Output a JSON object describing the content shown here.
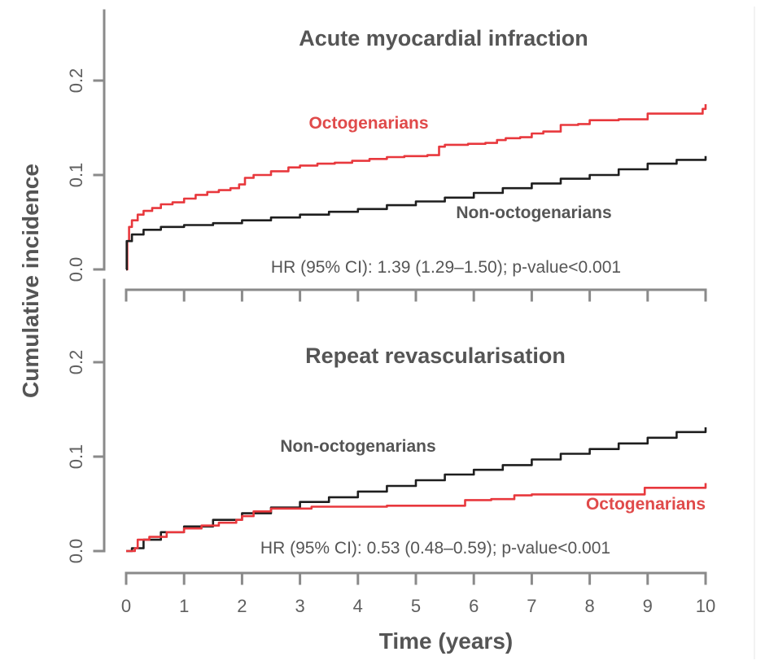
{
  "chart_data": [
    {
      "type": "line",
      "subtype": "step",
      "title": "Acute myocardial infraction",
      "xlabel": "Time (years)",
      "ylabel": "Cumulative incidence",
      "xlim": [
        0,
        10
      ],
      "ylim": [
        0,
        0.25
      ],
      "x_ticks": [
        "0",
        "1",
        "2",
        "3",
        "4",
        "5",
        "6",
        "7",
        "8",
        "9",
        "10"
      ],
      "y_ticks": [
        "0.0",
        "0.1",
        "0.2"
      ],
      "grid": false,
      "annotation": "HR (95% CI): 1.39 (1.29–1.50); p-value<0.001",
      "series": [
        {
          "name": "Octogenarians",
          "color": "#e8383d",
          "label_color": "#e04a4a",
          "points": [
            [
              0,
              0.0
            ],
            [
              0.02,
              0.03
            ],
            [
              0.05,
              0.045
            ],
            [
              0.1,
              0.052
            ],
            [
              0.2,
              0.058
            ],
            [
              0.3,
              0.062
            ],
            [
              0.45,
              0.065
            ],
            [
              0.6,
              0.069
            ],
            [
              0.8,
              0.071
            ],
            [
              1.0,
              0.075
            ],
            [
              1.2,
              0.079
            ],
            [
              1.4,
              0.082
            ],
            [
              1.6,
              0.084
            ],
            [
              1.8,
              0.086
            ],
            [
              1.95,
              0.09
            ],
            [
              2.05,
              0.097
            ],
            [
              2.2,
              0.1
            ],
            [
              2.5,
              0.104
            ],
            [
              2.8,
              0.108
            ],
            [
              3.0,
              0.11
            ],
            [
              3.3,
              0.112
            ],
            [
              3.6,
              0.113
            ],
            [
              3.9,
              0.115
            ],
            [
              4.2,
              0.117
            ],
            [
              4.5,
              0.119
            ],
            [
              4.8,
              0.12
            ],
            [
              5.2,
              0.121
            ],
            [
              5.4,
              0.13
            ],
            [
              5.5,
              0.132
            ],
            [
              5.9,
              0.133
            ],
            [
              6.2,
              0.134
            ],
            [
              6.4,
              0.137
            ],
            [
              6.55,
              0.139
            ],
            [
              6.8,
              0.14
            ],
            [
              7.0,
              0.144
            ],
            [
              7.2,
              0.146
            ],
            [
              7.5,
              0.153
            ],
            [
              7.8,
              0.154
            ],
            [
              8.0,
              0.158
            ],
            [
              8.5,
              0.159
            ],
            [
              9.0,
              0.165
            ],
            [
              9.9,
              0.165
            ],
            [
              9.95,
              0.17
            ],
            [
              10.0,
              0.175
            ]
          ]
        },
        {
          "name": "Non-octogenarians",
          "color": "#1e1e1e",
          "label_color": "#555555",
          "points": [
            [
              0.0,
              0.0
            ],
            [
              0.01,
              0.03
            ],
            [
              0.1,
              0.037
            ],
            [
              0.3,
              0.042
            ],
            [
              0.6,
              0.045
            ],
            [
              1.0,
              0.047
            ],
            [
              1.5,
              0.049
            ],
            [
              2.0,
              0.052
            ],
            [
              2.5,
              0.055
            ],
            [
              3.0,
              0.058
            ],
            [
              3.5,
              0.061
            ],
            [
              4.0,
              0.064
            ],
            [
              4.5,
              0.068
            ],
            [
              5.0,
              0.072
            ],
            [
              5.5,
              0.076
            ],
            [
              6.0,
              0.081
            ],
            [
              6.5,
              0.086
            ],
            [
              7.0,
              0.091
            ],
            [
              7.5,
              0.096
            ],
            [
              8.0,
              0.1
            ],
            [
              8.5,
              0.106
            ],
            [
              9.0,
              0.112
            ],
            [
              9.5,
              0.116
            ],
            [
              10.0,
              0.12
            ]
          ]
        }
      ]
    },
    {
      "type": "line",
      "subtype": "step",
      "title": "Repeat revascularisation",
      "xlabel": "Time (years)",
      "ylabel": "Cumulative incidence",
      "xlim": [
        0,
        10
      ],
      "ylim": [
        0,
        0.25
      ],
      "x_ticks": [
        "0",
        "1",
        "2",
        "3",
        "4",
        "5",
        "6",
        "7",
        "8",
        "9",
        "10"
      ],
      "y_ticks": [
        "0.0",
        "0.1",
        "0.2"
      ],
      "grid": false,
      "annotation": "HR (95% CI): 0.53 (0.48–0.59); p-value<0.001",
      "series": [
        {
          "name": "Non-octogenarians",
          "color": "#1e1e1e",
          "label_color": "#555555",
          "points": [
            [
              0.0,
              0.0
            ],
            [
              0.1,
              0.003
            ],
            [
              0.3,
              0.012
            ],
            [
              0.6,
              0.02
            ],
            [
              1.0,
              0.026
            ],
            [
              1.5,
              0.033
            ],
            [
              2.0,
              0.04
            ],
            [
              2.5,
              0.046
            ],
            [
              3.0,
              0.052
            ],
            [
              3.5,
              0.057
            ],
            [
              4.0,
              0.063
            ],
            [
              4.5,
              0.069
            ],
            [
              5.0,
              0.075
            ],
            [
              5.5,
              0.081
            ],
            [
              6.0,
              0.086
            ],
            [
              6.5,
              0.091
            ],
            [
              7.0,
              0.097
            ],
            [
              7.5,
              0.103
            ],
            [
              8.0,
              0.108
            ],
            [
              8.5,
              0.114
            ],
            [
              9.0,
              0.12
            ],
            [
              9.5,
              0.126
            ],
            [
              10.0,
              0.131
            ]
          ]
        },
        {
          "name": "Octogenarians",
          "color": "#e8383d",
          "label_color": "#e04a4a",
          "points": [
            [
              0.0,
              0.0
            ],
            [
              0.15,
              0.003
            ],
            [
              0.2,
              0.012
            ],
            [
              0.4,
              0.015
            ],
            [
              0.7,
              0.02
            ],
            [
              1.0,
              0.024
            ],
            [
              1.3,
              0.027
            ],
            [
              1.6,
              0.03
            ],
            [
              1.9,
              0.033
            ],
            [
              2.0,
              0.037
            ],
            [
              2.2,
              0.042
            ],
            [
              2.5,
              0.045
            ],
            [
              3.0,
              0.045
            ],
            [
              3.2,
              0.047
            ],
            [
              4.0,
              0.047
            ],
            [
              4.5,
              0.048
            ],
            [
              5.1,
              0.048
            ],
            [
              5.8,
              0.048
            ],
            [
              5.85,
              0.054
            ],
            [
              6.3,
              0.055
            ],
            [
              6.6,
              0.055
            ],
            [
              6.7,
              0.059
            ],
            [
              7.0,
              0.06
            ],
            [
              8.9,
              0.06
            ],
            [
              8.95,
              0.067
            ],
            [
              9.95,
              0.067
            ],
            [
              10.0,
              0.072
            ]
          ]
        }
      ]
    }
  ]
}
